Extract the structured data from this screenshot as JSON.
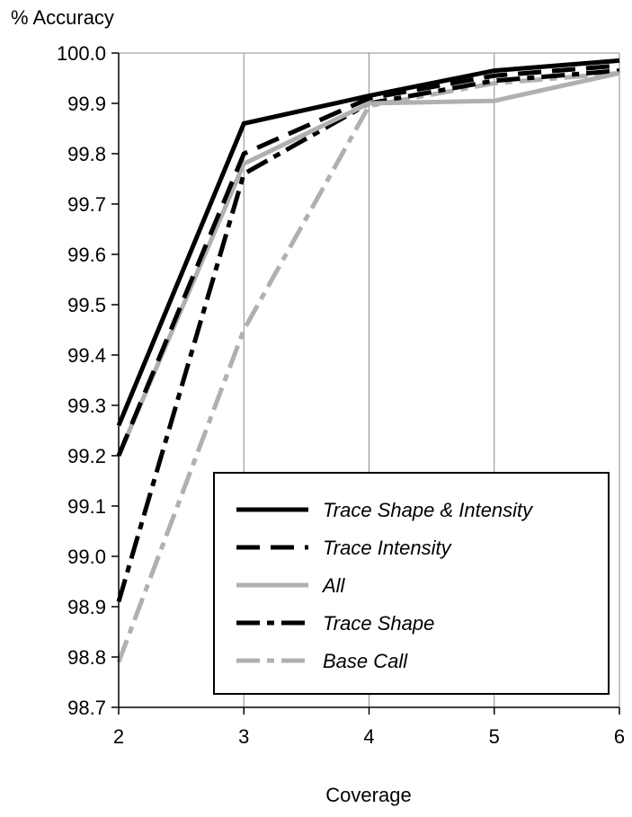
{
  "chart_data": {
    "type": "line",
    "title": "",
    "ylabel": "% Accuracy",
    "xlabel": "Coverage",
    "x": [
      2,
      3,
      4,
      5,
      6
    ],
    "xlim": [
      2,
      6
    ],
    "ylim": [
      98.7,
      100.0
    ],
    "x_ticks": [
      "2",
      "3",
      "4",
      "5",
      "6"
    ],
    "y_ticks": [
      "100.0",
      "99.9",
      "99.8",
      "99.7",
      "99.6",
      "99.5",
      "99.4",
      "99.3",
      "99.2",
      "99.1",
      "99.0",
      "98.9",
      "98.8",
      "98.7"
    ],
    "grid": "vertical",
    "legend_position": "bottom-right",
    "series": [
      {
        "name": "Trace Shape & Intensity",
        "values": [
          99.26,
          99.86,
          99.915,
          99.965,
          99.985
        ],
        "color": "#000000",
        "style": "solid"
      },
      {
        "name": "Trace Intensity",
        "values": [
          99.2,
          99.8,
          99.91,
          99.955,
          99.975
        ],
        "color": "#000000",
        "style": "dashed"
      },
      {
        "name": "All",
        "values": [
          99.2,
          99.78,
          99.9,
          99.905,
          99.96
        ],
        "color": "#b0b0b0",
        "style": "solid"
      },
      {
        "name": "Trace Shape",
        "values": [
          98.91,
          99.76,
          99.9,
          99.945,
          99.965
        ],
        "color": "#000000",
        "style": "dashdot"
      },
      {
        "name": "Base Call",
        "values": [
          98.79,
          99.45,
          99.895,
          99.94,
          99.96
        ],
        "color": "#b0b0b0",
        "style": "dashdot"
      }
    ]
  }
}
